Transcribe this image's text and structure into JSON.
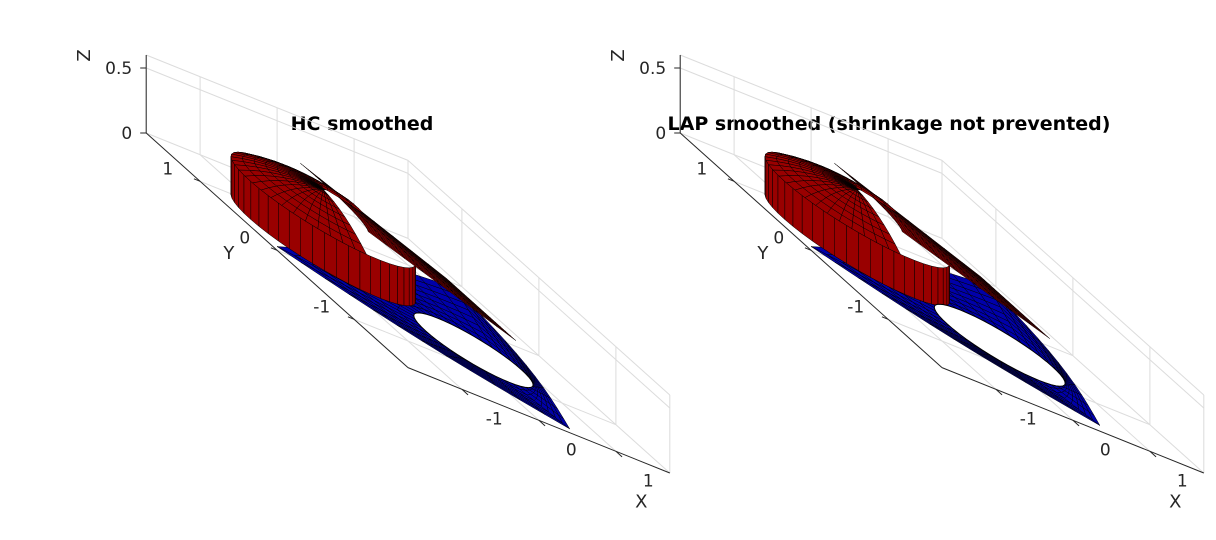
{
  "figure": {
    "background": "#ffffff"
  },
  "chart_data": [
    {
      "type": "surface3d",
      "title": "HC smoothed",
      "xlabel": "X",
      "ylabel": "Y",
      "zlabel": "Z",
      "xticks": [
        "-1",
        "0",
        "1"
      ],
      "yticks": [
        "-1",
        "0",
        "1"
      ],
      "zticks": [
        "0",
        "0.5"
      ],
      "xlim": [
        -1.7,
        1.7
      ],
      "ylim": [
        -1.7,
        1.7
      ],
      "zlim": [
        0,
        0.6
      ],
      "grid": true,
      "shape": {
        "top_radius": 0.6,
        "top_z": 0.45,
        "bottom_z": 0.0,
        "hole_radius": 0.62,
        "hole_center": [
          0.3,
          -0.55
        ],
        "corners": [
          [
            1.5,
            0.9
          ],
          [
            -1.6,
            0.1
          ],
          [
            0.5,
            -1.6
          ]
        ]
      },
      "colors": {
        "top": "#990000",
        "bottom": "#0000aa",
        "edge": "#000000"
      }
    },
    {
      "type": "surface3d",
      "title": "LAP smoothed (shrinkage not prevented)",
      "xlabel": "X",
      "ylabel": "Y",
      "zlabel": "Z",
      "xticks": [
        "-1",
        "0",
        "1"
      ],
      "yticks": [
        "-1",
        "0",
        "1"
      ],
      "zticks": [
        "0",
        "0.5"
      ],
      "xlim": [
        -1.7,
        1.7
      ],
      "ylim": [
        -1.7,
        1.7
      ],
      "zlim": [
        0,
        0.6
      ],
      "grid": true,
      "shape": {
        "top_radius": 0.6,
        "top_z": 0.45,
        "bottom_z": 0.0,
        "hole_radius": 0.68,
        "hole_center": [
          0.25,
          -0.5
        ],
        "corners": [
          [
            1.55,
            0.95
          ],
          [
            -1.6,
            0.1
          ],
          [
            0.5,
            -1.55
          ]
        ]
      },
      "colors": {
        "top": "#990000",
        "bottom": "#0000aa",
        "edge": "#000000"
      }
    }
  ]
}
